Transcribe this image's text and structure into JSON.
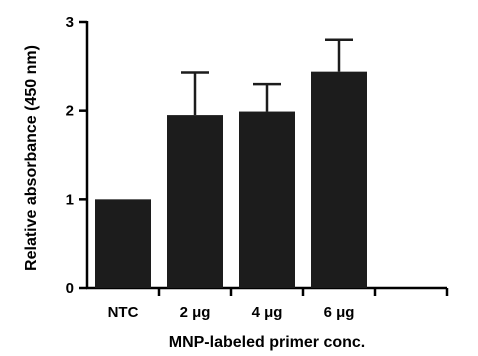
{
  "chart_data": {
    "type": "bar",
    "categories": [
      "NTC",
      "2 μg",
      "4 μg",
      "6 μg",
      ""
    ],
    "values": [
      1.0,
      1.95,
      1.99,
      2.44,
      null
    ],
    "errors": [
      0,
      0.48,
      0.31,
      0.36,
      null
    ],
    "title": "",
    "xlabel": "MNP-labeled primer conc.",
    "ylabel": "Relative absorbance (450 nm)",
    "ylim": [
      0,
      3
    ],
    "yticks": [
      0,
      1,
      2,
      3
    ],
    "grid": false,
    "colors": {
      "bar": "#1c1c1c",
      "axis": "#000000"
    }
  }
}
